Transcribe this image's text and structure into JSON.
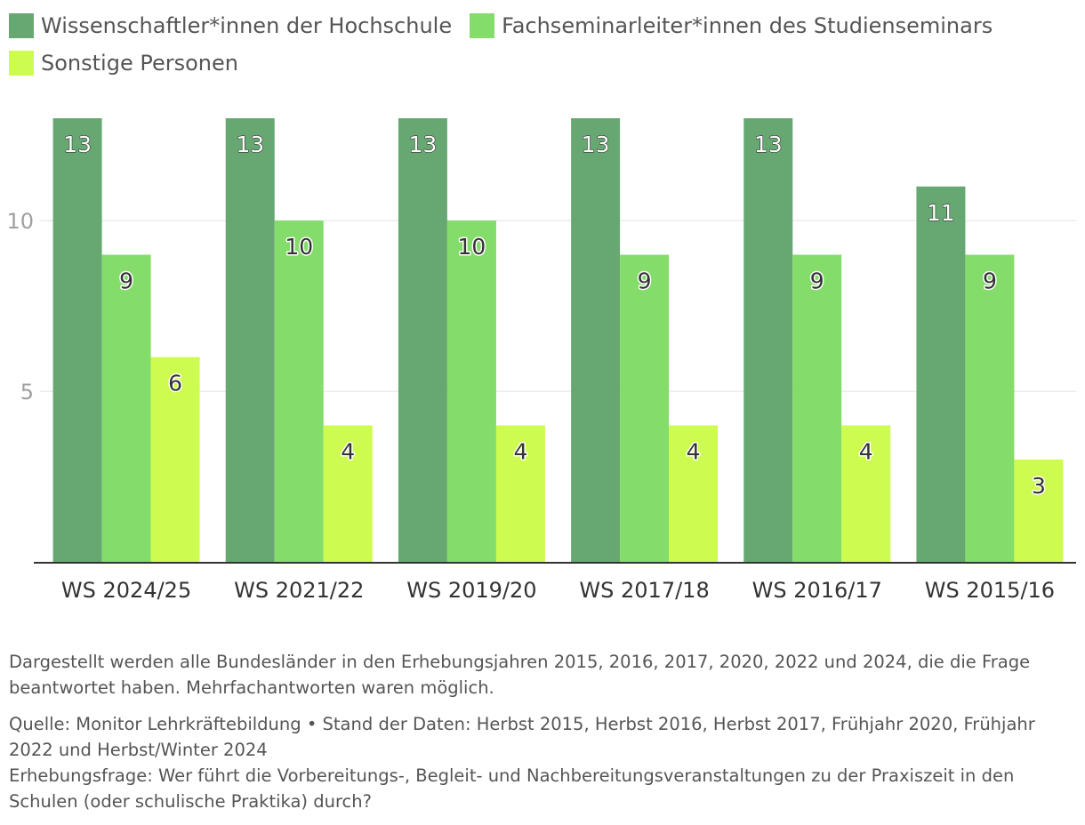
{
  "chart_data": {
    "type": "bar",
    "categories": [
      "WS 2024/25",
      "WS 2021/22",
      "WS 2019/20",
      "WS 2017/18",
      "WS 2016/17",
      "WS 2015/16"
    ],
    "series": [
      {
        "name": "Wissenschaftler*innen der Hochschule",
        "color": "#67a872",
        "values": [
          13,
          13,
          13,
          13,
          13,
          11
        ]
      },
      {
        "name": "Fachseminarleiter*innen des Studienseminars",
        "color": "#84dc6a",
        "values": [
          9,
          10,
          10,
          9,
          9,
          9
        ]
      },
      {
        "name": "Sonstige Personen",
        "color": "#cdfb4f",
        "values": [
          6,
          4,
          4,
          4,
          4,
          3
        ]
      }
    ],
    "yticks": [
      5,
      10
    ],
    "ylim": [
      0,
      13
    ],
    "grid": true,
    "legend": "top-left",
    "data_labels": true
  },
  "notes": {
    "description": "Dargestellt werden alle Bundesländer in den Erhebungsjahren 2015, 2016, 2017, 2020, 2022 und 2024, die die Frage beantwortet haben. Mehrfachantworten waren möglich.",
    "source": "Quelle: Monitor Lehrkräftebildung • Stand der Daten: Herbst 2015, Herbst 2016, Herbst 2017, Frühjahr 2020, Frühjahr 2022 und Herbst/Winter 2024",
    "question": "Erhebungsfrage: Wer führt die Vorbereitungs-, Begleit- und Nachbereitungsveranstaltungen zu der Praxiszeit in den Schulen (oder schulische Praktika) durch?"
  }
}
